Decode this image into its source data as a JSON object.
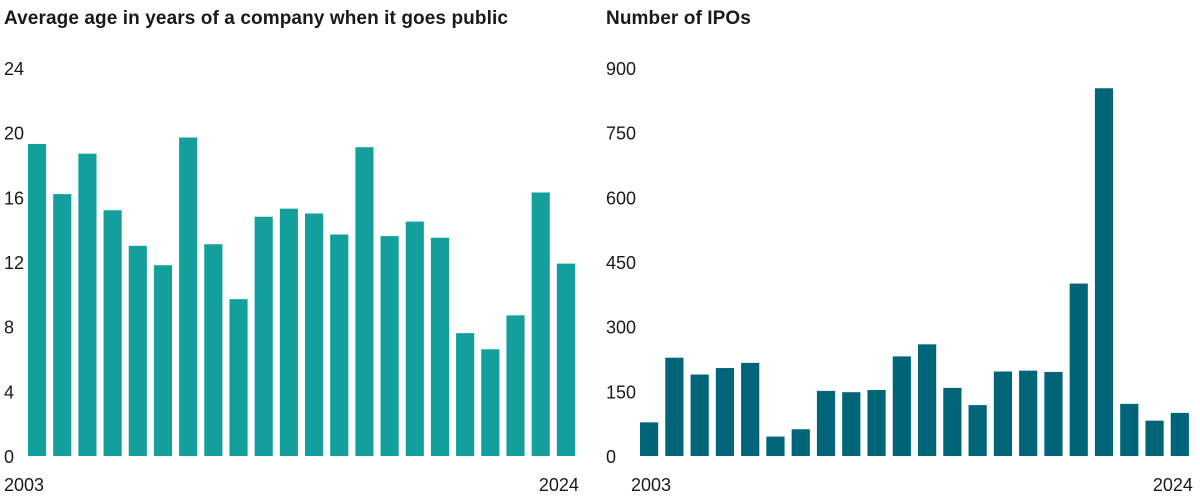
{
  "chart_data": [
    {
      "type": "bar",
      "title": "Average age in years of a company when it goes public",
      "xlabel": "",
      "ylabel": "",
      "color": "#13a09d",
      "ylim": [
        0,
        24
      ],
      "yticks": [
        "0",
        "4",
        "8",
        "12",
        "16",
        "20",
        "24"
      ],
      "x_tick_labels": [
        "2003",
        "2024"
      ],
      "categories": [
        "2003",
        "2004",
        "2005",
        "2006",
        "2007",
        "2008",
        "2009",
        "2010",
        "2011",
        "2012",
        "2013",
        "2014",
        "2015",
        "2016",
        "2017",
        "2018",
        "2019",
        "2020",
        "2021",
        "2022",
        "2023",
        "2024"
      ],
      "values": [
        19.3,
        16.2,
        18.7,
        15.2,
        13.0,
        11.8,
        19.7,
        13.1,
        9.7,
        14.8,
        15.3,
        15.0,
        13.7,
        19.1,
        13.6,
        14.5,
        13.5,
        7.6,
        6.6,
        8.7,
        16.3,
        11.9
      ]
    },
    {
      "type": "bar",
      "title": "Number of IPOs",
      "xlabel": "",
      "ylabel": "",
      "color": "#006578",
      "ylim": [
        0,
        900
      ],
      "yticks": [
        "0",
        "150",
        "300",
        "450",
        "600",
        "750",
        "900"
      ],
      "x_tick_labels": [
        "2003",
        "2024"
      ],
      "categories": [
        "2003",
        "2004",
        "2005",
        "2006",
        "2007",
        "2008",
        "2009",
        "2010",
        "2011",
        "2012",
        "2013",
        "2014",
        "2015",
        "2016",
        "2017",
        "2018",
        "2019",
        "2020",
        "2021",
        "2022",
        "2023",
        "2024"
      ],
      "values": [
        78,
        228,
        189,
        204,
        216,
        45,
        62,
        151,
        148,
        153,
        231,
        259,
        158,
        118,
        196,
        198,
        195,
        400,
        853,
        121,
        82,
        100
      ]
    }
  ]
}
